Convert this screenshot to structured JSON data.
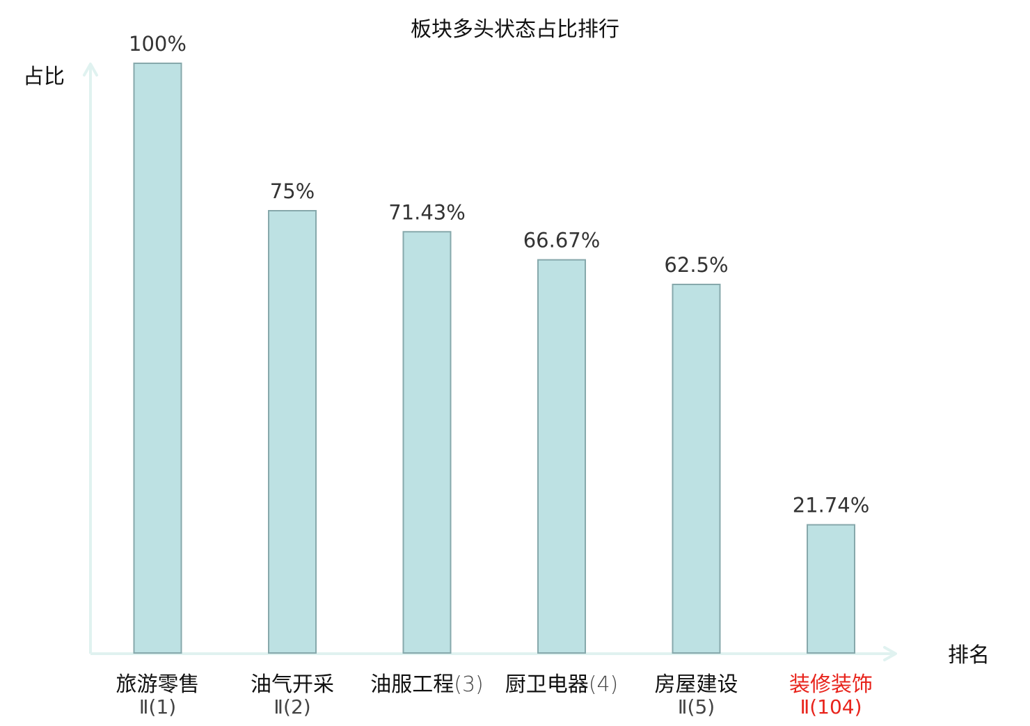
{
  "chart_data": {
    "type": "bar",
    "title": "板块多头状态占比排行",
    "ylabel": "占比",
    "xlabel": "排名",
    "ylim": [
      0,
      100
    ],
    "unit": "%",
    "grid": false,
    "legend": "none",
    "categories": [
      {
        "name": "旅游零售",
        "rank_text": "Ⅱ(1)",
        "highlight": false
      },
      {
        "name": "油气开采",
        "rank_text": "Ⅱ(2)",
        "highlight": false
      },
      {
        "name": "油服工程",
        "rank_text": "(3)",
        "highlight": false
      },
      {
        "name": "厨卫电器",
        "rank_text": "(4)",
        "highlight": false
      },
      {
        "name": "房屋建设",
        "rank_text": "Ⅱ(5)",
        "highlight": false
      },
      {
        "name": "装修装饰",
        "rank_text": "Ⅱ(104)",
        "highlight": true
      }
    ],
    "values": [
      100,
      75,
      71.43,
      66.67,
      62.5,
      21.74
    ],
    "value_labels": [
      "100%",
      "75%",
      "71.43%",
      "66.67%",
      "62.5%",
      "21.74%"
    ]
  },
  "colors": {
    "bar_fill": "#bde1e3",
    "bar_stroke": "#86a8ab",
    "axis": "#e0f2f0",
    "text": "#333333",
    "label_text": "#111111",
    "rank_text": "#444444",
    "highlight": "#e8241c"
  }
}
